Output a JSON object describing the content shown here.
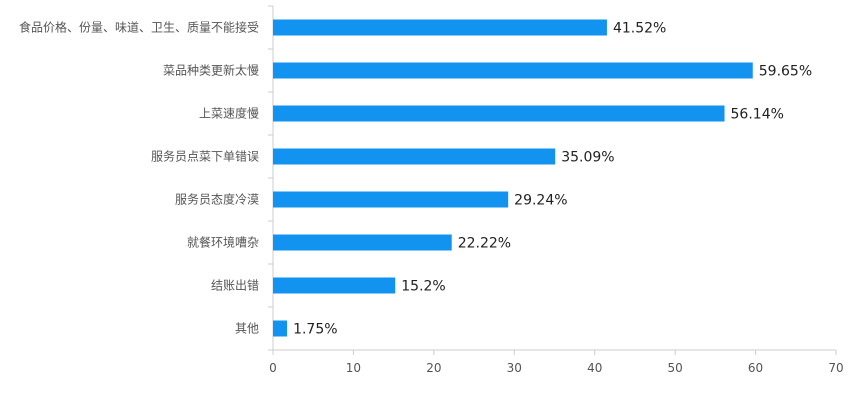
{
  "chart_data": {
    "type": "bar",
    "orientation": "horizontal",
    "title": "",
    "xlabel": "",
    "ylabel": "",
    "categories": [
      "食品价格、份量、味道、卫生、质量不能接受",
      "菜品种类更新太慢",
      "上菜速度慢",
      "服务员点菜下单错误",
      "服务员态度冷漠",
      "就餐环境嘈杂",
      "结账出错",
      "其他"
    ],
    "values": [
      41.52,
      59.65,
      56.14,
      35.09,
      29.24,
      22.22,
      15.2,
      1.75
    ],
    "value_labels": [
      "41.52%",
      "59.65%",
      "56.14%",
      "35.09%",
      "29.24%",
      "22.22%",
      "15.2%",
      "1.75%"
    ],
    "xlim": [
      0,
      70
    ],
    "xticks": [
      "0",
      "10",
      "20",
      "30",
      "40",
      "50",
      "60",
      "70"
    ],
    "grid": false,
    "legend": "none",
    "colors": {
      "bar": "#1393f0",
      "axis": "#cccccc",
      "text": "#555555",
      "value_text": "#222222"
    }
  }
}
